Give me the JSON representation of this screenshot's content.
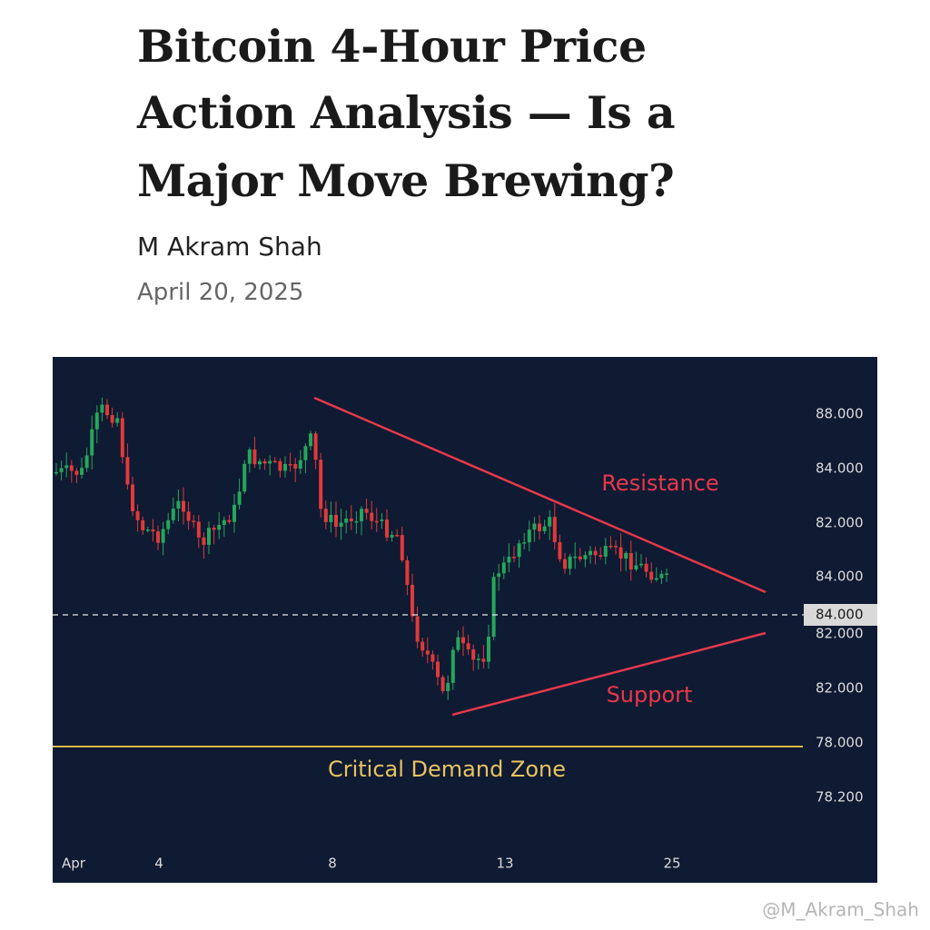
{
  "header": {
    "title_lines": [
      "Bitcoin 4-Hour Price",
      "Action Analysis — Is a",
      "Major Move Brewing?"
    ],
    "author": "M Akram Shah",
    "date": "April 20, 2025"
  },
  "chart": {
    "type": "candlestick",
    "y_axis_labels": [
      "88.000",
      "84.000",
      "82.000",
      "84.000",
      "84.000",
      "82.000",
      "82.000",
      "78.000",
      "78.200"
    ],
    "x_axis_labels": [
      "Apr",
      "4",
      "8",
      "13",
      "25"
    ],
    "annotations": {
      "resistance": "Resistance",
      "support": "Support",
      "demand_zone": "Critical Demand Zone"
    }
  },
  "watermark": "@M_Akram_Shah"
}
